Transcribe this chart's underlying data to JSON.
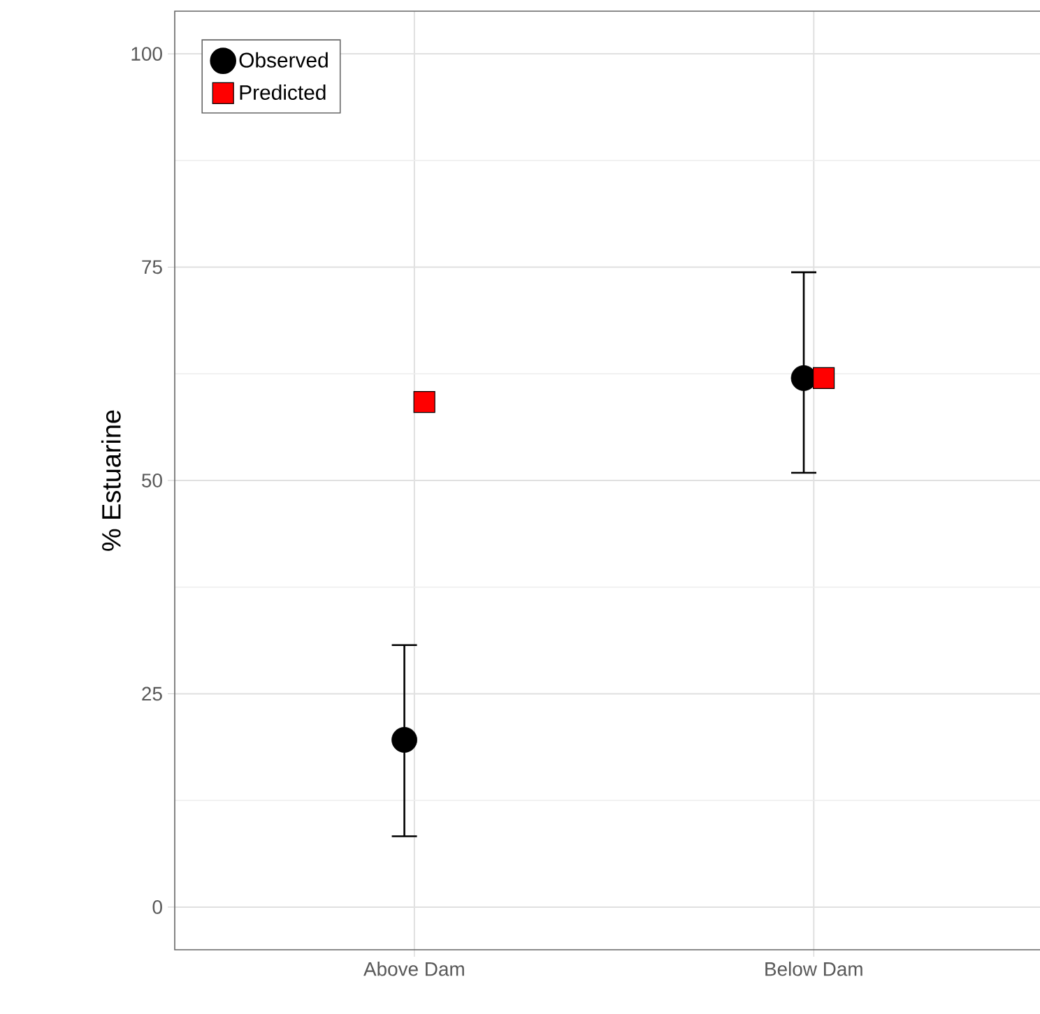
{
  "chart_data": {
    "type": "scatter",
    "ylabel": "% Estuarine",
    "categories": [
      "Above Dam",
      "Below Dam"
    ],
    "series": [
      {
        "name": "Observed",
        "color": "#000000",
        "marker": "circle",
        "values": [
          19.6,
          62.0
        ],
        "errors": [
          [
            8.3,
            30.7
          ],
          [
            50.9,
            74.4
          ]
        ]
      },
      {
        "name": "Predicted",
        "color": "#ff0000",
        "marker": "square",
        "values": [
          59.2,
          62.0
        ]
      }
    ],
    "ylim": [
      -5,
      105
    ],
    "yticks": [
      0,
      25,
      50,
      75,
      100
    ],
    "grid": true,
    "legend": "top left"
  }
}
